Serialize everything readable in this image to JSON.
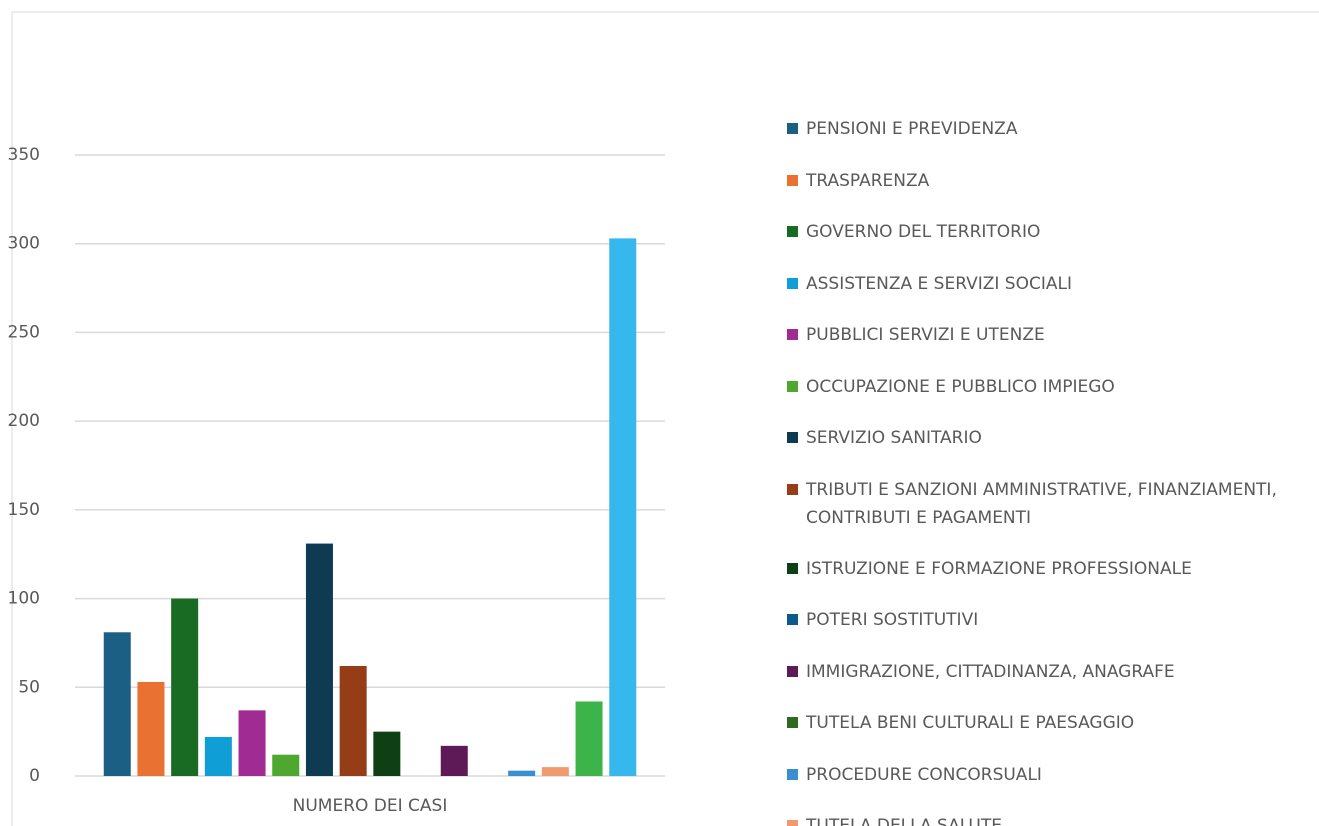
{
  "chart_data": {
    "type": "bar",
    "categories": [
      "NUMERO DEI CASI"
    ],
    "ylim": [
      0,
      350
    ],
    "yticks": [
      0,
      50,
      100,
      150,
      200,
      250,
      300,
      350
    ],
    "grid": true,
    "series": [
      {
        "name": "PENSIONI E PREVIDENZA",
        "color": "#1c5f85",
        "values": [
          81
        ]
      },
      {
        "name": "TRASPARENZA",
        "color": "#e97132",
        "values": [
          53
        ]
      },
      {
        "name": "GOVERNO DEL TERRITORIO",
        "color": "#196b24",
        "values": [
          100
        ]
      },
      {
        "name": "ASSISTENZA E SERVIZI SOCIALI",
        "color": "#0f9ed5",
        "values": [
          22
        ]
      },
      {
        "name": "PUBBLICI SERVIZI E UTENZE",
        "color": "#a02b93",
        "values": [
          37
        ]
      },
      {
        "name": "OCCUPAZIONE E PUBBLICO IMPIEGO",
        "color": "#4ea72e",
        "values": [
          12
        ]
      },
      {
        "name": "SERVIZIO SANITARIO",
        "color": "#0e3a52",
        "values": [
          131
        ]
      },
      {
        "name": "TRIBUTI E SANZIONI AMMINISTRATIVE, FINANZIAMENTI, CONTRIBUTI E PAGAMENTI",
        "color": "#963c16",
        "values": [
          62
        ]
      },
      {
        "name": "ISTRUZIONE E FORMAZIONE PROFESSIONALE",
        "color": "#0f3f14",
        "values": [
          25
        ]
      },
      {
        "name": "POTERI SOSTITUTIVI",
        "color": "#0a5a8a",
        "values": [
          0
        ]
      },
      {
        "name": "IMMIGRAZIONE, CITTADINANZA, ANAGRAFE",
        "color": "#5e1a56",
        "values": [
          17
        ]
      },
      {
        "name": "TUTELA BENI CULTURALI E PAESAGGIO",
        "color": "#2e6b1e",
        "values": [
          0
        ]
      },
      {
        "name": "PROCEDURE CONCORSUALI",
        "color": "#3a8fd0",
        "values": [
          3
        ]
      },
      {
        "name": "TUTELA DELLA SALUTE",
        "color": "#f09a6e",
        "values": [
          5
        ]
      },
      {
        "name": null,
        "color": "#3cb44a",
        "values": [
          42
        ]
      },
      {
        "name": null,
        "color": "#36b8ec",
        "values": [
          303
        ]
      }
    ]
  }
}
